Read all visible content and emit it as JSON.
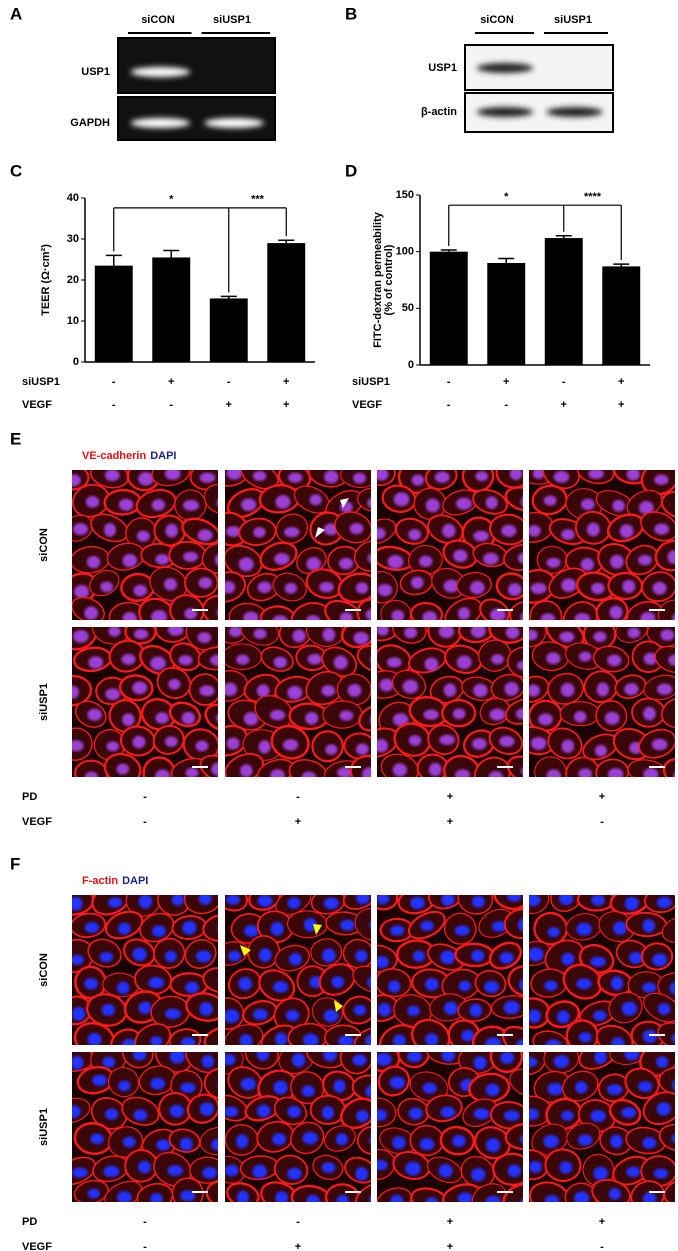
{
  "panel_a": {
    "letter": "A",
    "columns": [
      "siCON",
      "siUSP1"
    ],
    "rows": [
      "USP1",
      "GAPDH"
    ]
  },
  "panel_b": {
    "letter": "B",
    "columns": [
      "siCON",
      "siUSP1"
    ],
    "rows": [
      "USP1",
      "β-actin"
    ]
  },
  "chart_data": [
    {
      "type": "bar",
      "letter": "C",
      "ylabel": [
        "TEER (Ω·cm²)"
      ],
      "values": [
        23.5,
        25.5,
        15.5,
        29
      ],
      "errors": [
        2.5,
        1.7,
        0.5,
        0.7
      ],
      "color": "#000000",
      "ylim": [
        0,
        40
      ],
      "yticks": [
        0,
        10,
        20,
        30,
        40
      ],
      "significance": [
        "*",
        "***"
      ],
      "conditions": [
        {
          "name": "siUSP1",
          "signs": [
            "-",
            "+",
            "-",
            "+"
          ]
        },
        {
          "name": "VEGF",
          "signs": [
            "-",
            "-",
            "+",
            "+"
          ]
        }
      ]
    },
    {
      "type": "bar",
      "letter": "D",
      "ylabel": [
        "FITC-dextran permeability",
        "(% of control)"
      ],
      "values": [
        100,
        90,
        112,
        87
      ],
      "errors": [
        1.5,
        4,
        2,
        2
      ],
      "color": "#000000",
      "ylim": [
        0,
        150
      ],
      "yticks": [
        0,
        50,
        100,
        150
      ],
      "significance": [
        "*",
        "****"
      ],
      "conditions": [
        {
          "name": "siUSP1",
          "signs": [
            "-",
            "+",
            "-",
            "+"
          ]
        },
        {
          "name": "VEGF",
          "signs": [
            "-",
            "-",
            "+",
            "+"
          ]
        }
      ]
    }
  ],
  "panel_e": {
    "letter": "E",
    "stains": [
      "VE-cadherin",
      "DAPI"
    ],
    "rows": [
      "siCON",
      "siUSP1"
    ],
    "conditions": [
      {
        "name": "PD",
        "signs": [
          "-",
          "-",
          "+",
          "+"
        ]
      },
      {
        "name": "VEGF",
        "signs": [
          "-",
          "+",
          "+",
          "-"
        ]
      }
    ]
  },
  "panel_f": {
    "letter": "F",
    "stains": [
      "F-actin",
      "DAPI"
    ],
    "rows": [
      "siCON",
      "siUSP1"
    ],
    "conditions": [
      {
        "name": "PD",
        "signs": [
          "-",
          "-",
          "+",
          "+"
        ]
      },
      {
        "name": "VEGF",
        "signs": [
          "-",
          "+",
          "+",
          "-"
        ]
      }
    ]
  }
}
